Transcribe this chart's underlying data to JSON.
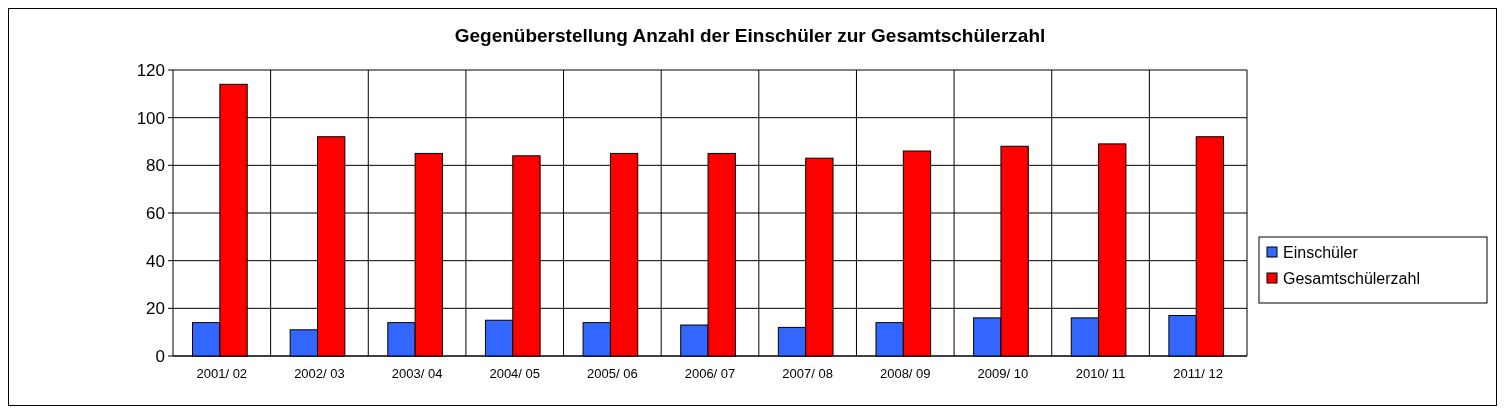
{
  "chart_data": {
    "type": "bar",
    "title": "Gegenüberstellung Anzahl der Einschüler zur Gesamtschülerzahl",
    "categories": [
      "2001/ 02",
      "2002/ 03",
      "2003/ 04",
      "2004/ 05",
      "2005/ 06",
      "2006/ 07",
      "2007/ 08",
      "2008/ 09",
      "2009/ 10",
      "2010/ 11",
      "2011/ 12"
    ],
    "series": [
      {
        "name": "Einschüler",
        "color": "#3366ff",
        "values": [
          14,
          11,
          14,
          15,
          14,
          13,
          12,
          14,
          16,
          16,
          17
        ]
      },
      {
        "name": "Gesamtschülerzahl",
        "color": "#ff0000",
        "values": [
          114,
          92,
          85,
          84,
          85,
          85,
          83,
          86,
          88,
          89,
          92
        ]
      }
    ],
    "ylim": [
      0,
      120
    ],
    "yticks": [
      0,
      20,
      40,
      60,
      80,
      100,
      120
    ],
    "grid": "y",
    "legend": "right"
  }
}
